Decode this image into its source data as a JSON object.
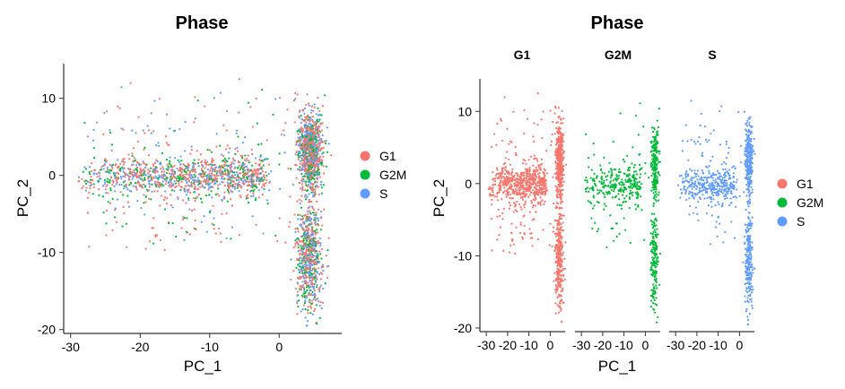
{
  "chart_data": [
    {
      "type": "scatter",
      "title": "Phase",
      "xlabel": "PC_1",
      "ylabel": "PC_2",
      "xlim": [
        -31,
        9
      ],
      "ylim": [
        -20.5,
        14.5
      ],
      "x_ticks": [
        -30,
        -20,
        -10,
        0
      ],
      "y_ticks": [
        -20,
        -10,
        0,
        10
      ],
      "x_tick_labels": [
        "-30",
        "-20",
        "-10",
        "0"
      ],
      "y_tick_labels": [
        "-20",
        "-10",
        "0",
        "10"
      ],
      "grid": false,
      "legend_position": "right",
      "legend": [
        "G1",
        "G2M",
        "S"
      ],
      "series": [
        {
          "name": "G1",
          "color": "#F8766D"
        },
        {
          "name": "G2M",
          "color": "#00BA38"
        },
        {
          "name": "S",
          "color": "#619CFF"
        }
      ],
      "clusters": [
        {
          "description": "horizontal arm",
          "x_range": [
            -29,
            -2
          ],
          "y_center": 0,
          "y_spread": 2.5
        },
        {
          "description": "upper vertical lobe",
          "x_center": 4.5,
          "y_range": [
            -2,
            10
          ]
        },
        {
          "description": "lower vertical lobe",
          "x_center": 4.5,
          "y_range": [
            -18,
            -3
          ]
        }
      ]
    },
    {
      "type": "scatter",
      "title": "Phase",
      "xlabel": "PC_1",
      "ylabel": "PC_2",
      "facets": [
        "G1",
        "G2M",
        "S"
      ],
      "xlim": [
        -33,
        7
      ],
      "ylim": [
        -20.5,
        14.5
      ],
      "x_ticks": [
        -30,
        -20,
        -10,
        0
      ],
      "y_ticks": [
        -20,
        -10,
        0,
        10
      ],
      "x_tick_labels": [
        "-30",
        "-20",
        "-10",
        "0"
      ],
      "y_tick_labels": [
        "-20",
        "-10",
        "0",
        "10"
      ],
      "grid": false,
      "legend_position": "right",
      "legend": [
        "G1",
        "G2M",
        "S"
      ],
      "series": [
        {
          "name": "G1",
          "color": "#F8766D"
        },
        {
          "name": "G2M",
          "color": "#00BA38"
        },
        {
          "name": "S",
          "color": "#619CFF"
        }
      ]
    }
  ]
}
